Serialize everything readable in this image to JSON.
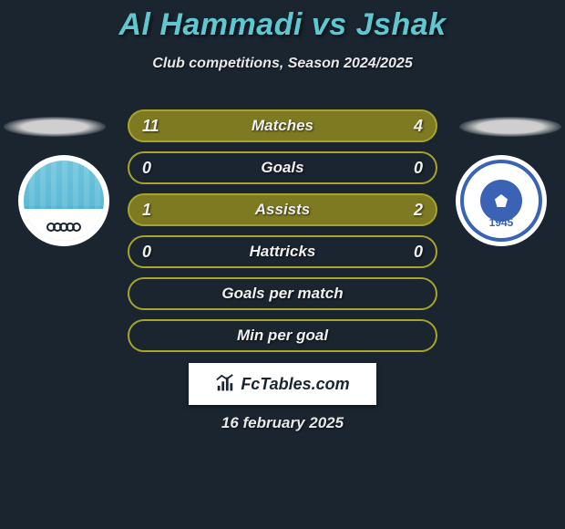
{
  "title": "Al Hammadi vs Jshak",
  "subtitle": "Club competitions, Season 2024/2025",
  "colors": {
    "title": "#5fc7d0",
    "background": "#1a2530",
    "olive": "#a8a42a",
    "olive_dark": "#8c8820",
    "text": "#f0f0f0"
  },
  "badge_left": {
    "primary": "#5ab9d6",
    "border": "#ffffff"
  },
  "badge_right": {
    "primary": "#3a63b5",
    "year": "1945",
    "border": "#ffffff"
  },
  "rows": [
    {
      "left": "11",
      "label": "Matches",
      "right": "4",
      "border": "#a8a42a",
      "fill": "#7e7a22"
    },
    {
      "left": "0",
      "label": "Goals",
      "right": "0",
      "border": "#a8a42a",
      "fill": "transparent"
    },
    {
      "left": "1",
      "label": "Assists",
      "right": "2",
      "border": "#a8a42a",
      "fill": "#7e7a22"
    },
    {
      "left": "0",
      "label": "Hattricks",
      "right": "0",
      "border": "#a8a42a",
      "fill": "transparent"
    },
    {
      "left": "",
      "label": "Goals per match",
      "right": "",
      "border": "#a8a42a",
      "fill": "transparent"
    },
    {
      "left": "",
      "label": "Min per goal",
      "right": "",
      "border": "#a8a42a",
      "fill": "transparent"
    }
  ],
  "footer_brand": "FcTables.com",
  "date": "16 february 2025"
}
